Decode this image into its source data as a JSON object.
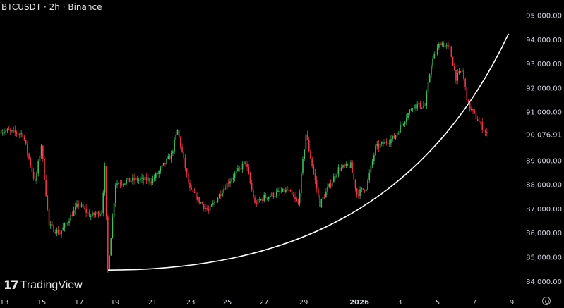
{
  "header": {
    "title": "BTCUSDT · 2h · Binance"
  },
  "branding": {
    "logo_text": "TradingView",
    "logo_mark": "TV"
  },
  "colors": {
    "up": "#26a69a",
    "up_bright": "#3fbf5f",
    "down": "#f23645",
    "curve": "#ffffff",
    "background": "#000000"
  },
  "chart_data": {
    "type": "candlestick",
    "symbol": "BTCUSDT",
    "interval": "2h",
    "exchange": "Binance",
    "y_ticks": [
      "95,000.00",
      "94,000.00",
      "93,000.00",
      "92,000.00",
      "91,000.00",
      "90,000.00",
      "89,000.00",
      "88,000.00",
      "87,000.00",
      "86,000.00",
      "85,000.00",
      "84,000.00"
    ],
    "ylim": [
      84000,
      95000
    ],
    "last_price_label": "90,076.91",
    "x_ticks": [
      "13",
      "15",
      "17",
      "19",
      "21",
      "23",
      "25",
      "27",
      "29",
      "2026",
      "3",
      "5",
      "7",
      "9"
    ],
    "grid": false,
    "approx_price_path": [
      [
        "2025-12-12T20:00",
        90250
      ],
      [
        "2025-12-14T00:00",
        90100
      ],
      [
        "2025-12-14T16:00",
        88060
      ],
      [
        "2025-12-15T00:00",
        89660
      ],
      [
        "2025-12-15T10:00",
        86300
      ],
      [
        "2025-12-16T00:00",
        86000
      ],
      [
        "2025-12-17T00:00",
        87200
      ],
      [
        "2025-12-17T16:00",
        86700
      ],
      [
        "2025-12-18T06:00",
        86900
      ],
      [
        "2025-12-18T10:00",
        88650
      ],
      [
        "2025-12-18T14:00",
        84470
      ],
      [
        "2025-12-19T00:00",
        88060
      ],
      [
        "2025-12-20T00:00",
        88200
      ],
      [
        "2025-12-21T00:00",
        88200
      ],
      [
        "2025-12-22T00:00",
        89230
      ],
      [
        "2025-12-22T08:00",
        90250
      ],
      [
        "2025-12-23T00:00",
        87770
      ],
      [
        "2025-12-24T00:00",
        86900
      ],
      [
        "2025-12-25T00:00",
        88060
      ],
      [
        "2025-12-26T00:00",
        88940
      ],
      [
        "2025-12-26T12:00",
        87200
      ],
      [
        "2025-12-27T00:00",
        87480
      ],
      [
        "2025-12-28T06:00",
        87770
      ],
      [
        "2025-12-28T20:00",
        87200
      ],
      [
        "2025-12-29T06:00",
        90100
      ],
      [
        "2025-12-30T00:00",
        87200
      ],
      [
        "2025-12-31T00:00",
        88650
      ],
      [
        "2025-12-31T16:00",
        88800
      ],
      [
        "2026-01-01T00:00",
        87620
      ],
      [
        "2026-01-01T12:00",
        87900
      ],
      [
        "2026-01-02T00:00",
        89520
      ],
      [
        "2026-01-03T00:00",
        89950
      ],
      [
        "2026-01-04T00:00",
        91270
      ],
      [
        "2026-01-04T16:00",
        91270
      ],
      [
        "2026-01-05T00:00",
        93020
      ],
      [
        "2026-01-05T12:00",
        93900
      ],
      [
        "2026-01-06T00:00",
        93600
      ],
      [
        "2026-01-06T08:00",
        92430
      ],
      [
        "2026-01-06T16:00",
        92720
      ],
      [
        "2026-01-07T00:00",
        91270
      ],
      [
        "2026-01-07T12:00",
        90690
      ],
      [
        "2026-01-08T00:00",
        90076.91
      ]
    ],
    "annotations": [
      {
        "type": "curve",
        "from": [
          "2025-12-18T14:00",
          84470
        ],
        "to": [
          "2026-01-09T04:00",
          94250
        ]
      }
    ]
  },
  "controls": {
    "settings_icon": "gear-icon"
  }
}
